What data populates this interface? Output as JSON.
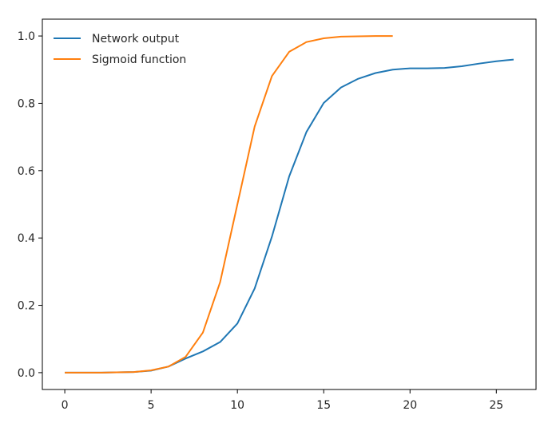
{
  "chart_data": {
    "type": "line",
    "title": "",
    "xlabel": "",
    "ylabel": "",
    "xlim": [
      -1.3,
      27.3
    ],
    "ylim": [
      -0.05,
      1.05
    ],
    "grid": false,
    "legend_position": "top-left",
    "x_ticks": [
      "0",
      "5",
      "10",
      "15",
      "20",
      "25"
    ],
    "y_ticks": [
      "0.0",
      "0.2",
      "0.4",
      "0.6",
      "0.8",
      "1.0"
    ],
    "series": [
      {
        "name": "Network output",
        "color": "#1f77b4",
        "x": [
          0,
          1,
          2,
          3,
          4,
          5,
          6,
          7,
          8,
          9,
          10,
          11,
          12,
          13,
          14,
          15,
          16,
          17,
          18,
          19,
          20,
          21,
          22,
          23,
          24,
          25,
          26
        ],
        "y": [
          0.0,
          0.0,
          0.0,
          0.001,
          0.002,
          0.006,
          0.018,
          0.042,
          0.063,
          0.091,
          0.146,
          0.25,
          0.404,
          0.583,
          0.715,
          0.801,
          0.847,
          0.873,
          0.89,
          0.9,
          0.904,
          0.904,
          0.905,
          0.91,
          0.918,
          0.925,
          0.93
        ]
      },
      {
        "name": "Sigmoid function",
        "color": "#ff7f0e",
        "x": [
          0,
          1,
          2,
          3,
          4,
          5,
          6,
          7,
          8,
          9,
          10,
          11,
          12,
          13,
          14,
          15,
          16,
          17,
          18,
          19
        ],
        "y": [
          0.0,
          0.0,
          0.0,
          0.001,
          0.002,
          0.007,
          0.018,
          0.047,
          0.119,
          0.269,
          0.5,
          0.731,
          0.881,
          0.953,
          0.982,
          0.993,
          0.998,
          0.999,
          1.0,
          1.0
        ]
      }
    ]
  }
}
